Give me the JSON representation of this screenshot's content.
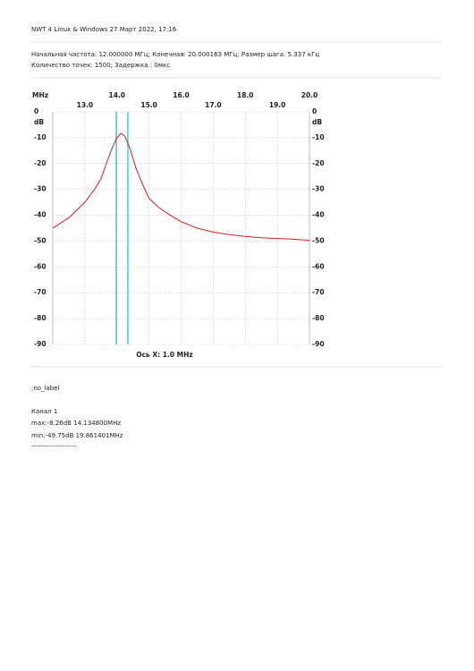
{
  "header": {
    "program": "NWT 4 Linux & Windows  27 Март 2022, 17:16",
    "settings": [
      "Начальная частота: 12.000000 МГц; Конечная: 20.000163 МГц; Размер шага: 5.337 кГц",
      "Количество точек: 1500; Задержка :   0мкс"
    ]
  },
  "chart_data": {
    "type": "line",
    "x_unit": "MHz",
    "y_unit": "dB",
    "x_label": "Ось X: 1.0 MHz",
    "xlim": [
      12,
      20
    ],
    "ylim": [
      -90,
      0
    ],
    "xticks": [
      {
        "value": 13,
        "label": "13.0"
      },
      {
        "value": 14,
        "label": "14.0"
      },
      {
        "value": 15,
        "label": "15.0"
      },
      {
        "value": 16,
        "label": "16.0"
      },
      {
        "value": 17,
        "label": "17.0"
      },
      {
        "value": 18,
        "label": "18.0"
      },
      {
        "value": 19,
        "label": "19.0"
      },
      {
        "value": 20,
        "label": "20.0"
      }
    ],
    "yticks": [
      0,
      -10,
      -20,
      -30,
      -40,
      -50,
      -60,
      -70,
      -80,
      -90
    ],
    "grid": true,
    "markers": {
      "color": "#3cc8dc",
      "x": [
        13.98,
        14.34
      ]
    },
    "series": [
      {
        "name": "Канал 1",
        "color": "#d42020",
        "x": [
          12.0,
          12.5,
          13.0,
          13.3,
          13.5,
          13.7,
          13.85,
          14.0,
          14.13,
          14.25,
          14.4,
          14.6,
          14.8,
          15.0,
          15.3,
          15.6,
          16.0,
          16.5,
          17.0,
          17.5,
          18.0,
          18.5,
          19.0,
          19.5,
          20.0
        ],
        "values": [
          -45,
          -41,
          -35,
          -30,
          -26,
          -19,
          -14,
          -10,
          -8.3,
          -9.5,
          -14,
          -22,
          -28,
          -33.5,
          -37,
          -39.5,
          -42.5,
          -45,
          -46.5,
          -47.5,
          -48.2,
          -48.7,
          -49,
          -49.3,
          -49.7
        ]
      }
    ]
  },
  "footer": {
    "label": ";no_label",
    "channel": "Канал 1",
    "max": "max:-8.26dB 14.134800MHz",
    "min": "min:-49.75dB 19.861401MHz",
    "rule": "--------------------"
  }
}
